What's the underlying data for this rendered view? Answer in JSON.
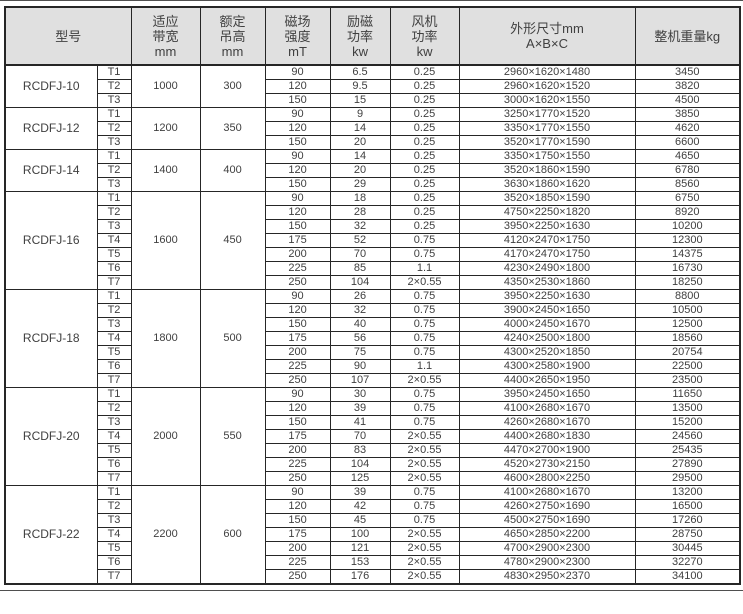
{
  "page": {
    "header_bg": "#e0e0e0",
    "border_color": "#262626",
    "text_color": "#404040",
    "background": "#ffffff"
  },
  "table": {
    "headers": [
      {
        "key": "model",
        "label": "型号"
      },
      {
        "key": "bandwidth",
        "label": "适应\n带宽\nmm"
      },
      {
        "key": "lift",
        "label": "额定\n吊高\nmm"
      },
      {
        "key": "field",
        "label": "磁场\n强度\nmT"
      },
      {
        "key": "excitation",
        "label": "励磁\n功率\nkw"
      },
      {
        "key": "fan",
        "label": "风机\n功率\nkw"
      },
      {
        "key": "dims",
        "label": "外形尺寸mm\nA×B×C"
      },
      {
        "key": "weight",
        "label": "整机重量kg"
      }
    ],
    "groups": [
      {
        "model": "RCDFJ-10",
        "bandwidth": "1000",
        "lift": "300",
        "rows": [
          {
            "t": "T1",
            "field": "90",
            "excitation": "6.5",
            "fan": "0.25",
            "dims": "2960×1620×1480",
            "weight": "3450"
          },
          {
            "t": "T2",
            "field": "120",
            "excitation": "9.5",
            "fan": "0.25",
            "dims": "2960×1620×1520",
            "weight": "3820"
          },
          {
            "t": "T3",
            "field": "150",
            "excitation": "15",
            "fan": "0.25",
            "dims": "3000×1620×1550",
            "weight": "4500"
          }
        ]
      },
      {
        "model": "RCDFJ-12",
        "bandwidth": "1200",
        "lift": "350",
        "rows": [
          {
            "t": "T1",
            "field": "90",
            "excitation": "9",
            "fan": "0.25",
            "dims": "3250×1770×1520",
            "weight": "3850"
          },
          {
            "t": "T2",
            "field": "120",
            "excitation": "14",
            "fan": "0.25",
            "dims": "3350×1770×1550",
            "weight": "4620"
          },
          {
            "t": "T3",
            "field": "150",
            "excitation": "20",
            "fan": "0.25",
            "dims": "3520×1770×1590",
            "weight": "6600"
          }
        ]
      },
      {
        "model": "RCDFJ-14",
        "bandwidth": "1400",
        "lift": "400",
        "rows": [
          {
            "t": "T1",
            "field": "90",
            "excitation": "14",
            "fan": "0.25",
            "dims": "3350×1750×1550",
            "weight": "4650"
          },
          {
            "t": "T2",
            "field": "120",
            "excitation": "20",
            "fan": "0.25",
            "dims": "3520×1860×1590",
            "weight": "6780"
          },
          {
            "t": "T3",
            "field": "150",
            "excitation": "29",
            "fan": "0.25",
            "dims": "3630×1860×1620",
            "weight": "8560"
          }
        ]
      },
      {
        "model": "RCDFJ-16",
        "bandwidth": "1600",
        "lift": "450",
        "rows": [
          {
            "t": "T1",
            "field": "90",
            "excitation": "18",
            "fan": "0.25",
            "dims": "3520×1850×1590",
            "weight": "6750"
          },
          {
            "t": "T2",
            "field": "120",
            "excitation": "28",
            "fan": "0.25",
            "dims": "4750×2250×1820",
            "weight": "8920"
          },
          {
            "t": "T3",
            "field": "150",
            "excitation": "32",
            "fan": "0.25",
            "dims": "3950×2250×1630",
            "weight": "10200"
          },
          {
            "t": "T4",
            "field": "175",
            "excitation": "52",
            "fan": "0.75",
            "dims": "4120×2470×1750",
            "weight": "12300"
          },
          {
            "t": "T5",
            "field": "200",
            "excitation": "70",
            "fan": "0.75",
            "dims": "4170×2470×1750",
            "weight": "14375"
          },
          {
            "t": "T6",
            "field": "225",
            "excitation": "85",
            "fan": "1.1",
            "dims": "4230×2490×1800",
            "weight": "16730"
          },
          {
            "t": "T7",
            "field": "250",
            "excitation": "104",
            "fan": "2×0.55",
            "dims": "4350×2530×1860",
            "weight": "18250"
          }
        ]
      },
      {
        "model": "RCDFJ-18",
        "bandwidth": "1800",
        "lift": "500",
        "rows": [
          {
            "t": "T1",
            "field": "90",
            "excitation": "26",
            "fan": "0.75",
            "dims": "3950×2250×1630",
            "weight": "8800"
          },
          {
            "t": "T2",
            "field": "120",
            "excitation": "32",
            "fan": "0.75",
            "dims": "3900×2450×1650",
            "weight": "10500"
          },
          {
            "t": "T3",
            "field": "150",
            "excitation": "40",
            "fan": "0.75",
            "dims": "4000×2450×1670",
            "weight": "12500"
          },
          {
            "t": "T4",
            "field": "175",
            "excitation": "56",
            "fan": "0.75",
            "dims": "4240×2500×1800",
            "weight": "18560"
          },
          {
            "t": "T5",
            "field": "200",
            "excitation": "75",
            "fan": "0.75",
            "dims": "4300×2520×1850",
            "weight": "20754"
          },
          {
            "t": "T6",
            "field": "225",
            "excitation": "90",
            "fan": "1.1",
            "dims": "4300×2580×1900",
            "weight": "22500"
          },
          {
            "t": "T7",
            "field": "250",
            "excitation": "107",
            "fan": "2×0.55",
            "dims": "4400×2650×1950",
            "weight": "23500"
          }
        ]
      },
      {
        "model": "RCDFJ-20",
        "bandwidth": "2000",
        "lift": "550",
        "rows": [
          {
            "t": "T1",
            "field": "90",
            "excitation": "30",
            "fan": "0.75",
            "dims": "3950×2450×1650",
            "weight": "11650"
          },
          {
            "t": "T2",
            "field": "120",
            "excitation": "39",
            "fan": "0.75",
            "dims": "4100×2680×1670",
            "weight": "13500"
          },
          {
            "t": "T3",
            "field": "150",
            "excitation": "41",
            "fan": "0.75",
            "dims": "4260×2680×1670",
            "weight": "15200"
          },
          {
            "t": "T4",
            "field": "175",
            "excitation": "70",
            "fan": "2×0.55",
            "dims": "4400×2680×1830",
            "weight": "24560"
          },
          {
            "t": "T5",
            "field": "200",
            "excitation": "83",
            "fan": "2×0.55",
            "dims": "4470×2700×1900",
            "weight": "25435"
          },
          {
            "t": "T6",
            "field": "225",
            "excitation": "104",
            "fan": "2×0.55",
            "dims": "4520×2730×2150",
            "weight": "27890"
          },
          {
            "t": "T7",
            "field": "250",
            "excitation": "125",
            "fan": "2×0.55",
            "dims": "4600×2800×2250",
            "weight": "29500"
          }
        ]
      },
      {
        "model": "RCDFJ-22",
        "bandwidth": "2200",
        "lift": "600",
        "rows": [
          {
            "t": "T1",
            "field": "90",
            "excitation": "39",
            "fan": "0.75",
            "dims": "4100×2680×1670",
            "weight": "13200"
          },
          {
            "t": "T2",
            "field": "120",
            "excitation": "42",
            "fan": "0.75",
            "dims": "4260×2750×1690",
            "weight": "16500"
          },
          {
            "t": "T3",
            "field": "150",
            "excitation": "45",
            "fan": "0.75",
            "dims": "4500×2750×1690",
            "weight": "17260"
          },
          {
            "t": "T4",
            "field": "175",
            "excitation": "100",
            "fan": "2×0.55",
            "dims": "4650×2850×2200",
            "weight": "28750"
          },
          {
            "t": "T5",
            "field": "200",
            "excitation": "121",
            "fan": "2×0.55",
            "dims": "4700×2900×2300",
            "weight": "30445"
          },
          {
            "t": "T6",
            "field": "225",
            "excitation": "153",
            "fan": "2×0.55",
            "dims": "4780×2900×2300",
            "weight": "32270"
          },
          {
            "t": "T7",
            "field": "250",
            "excitation": "176",
            "fan": "2×0.55",
            "dims": "4830×2950×2370",
            "weight": "34100"
          }
        ]
      }
    ]
  }
}
